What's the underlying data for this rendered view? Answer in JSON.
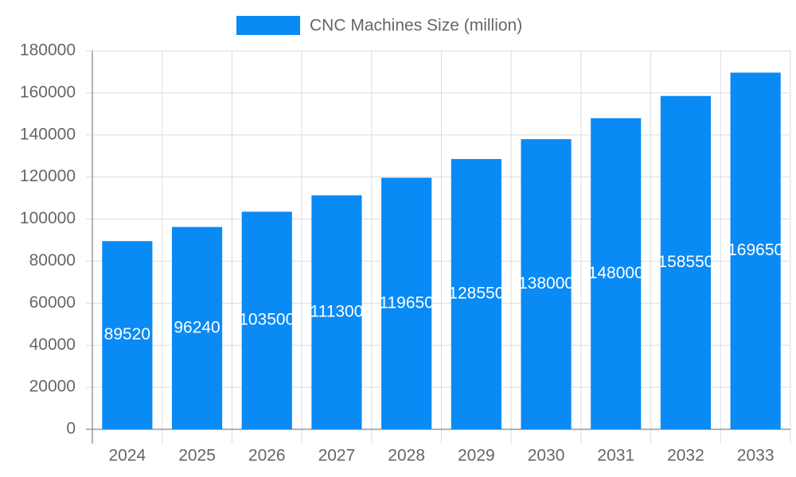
{
  "chart_data": {
    "type": "bar",
    "categories": [
      "2024",
      "2025",
      "2026",
      "2027",
      "2028",
      "2029",
      "2030",
      "2031",
      "2032",
      "2033"
    ],
    "series": [
      {
        "name": "CNC Machines Size (million)",
        "color": "#0a8af5",
        "values": [
          89520,
          96240,
          103500,
          111300,
          119650,
          128550,
          138000,
          148000,
          158550,
          169650
        ]
      }
    ],
    "ylim": [
      0,
      180000
    ],
    "yticks": [
      0,
      20000,
      40000,
      60000,
      80000,
      100000,
      120000,
      140000,
      160000,
      180000
    ],
    "grid": true,
    "legend": "top"
  }
}
